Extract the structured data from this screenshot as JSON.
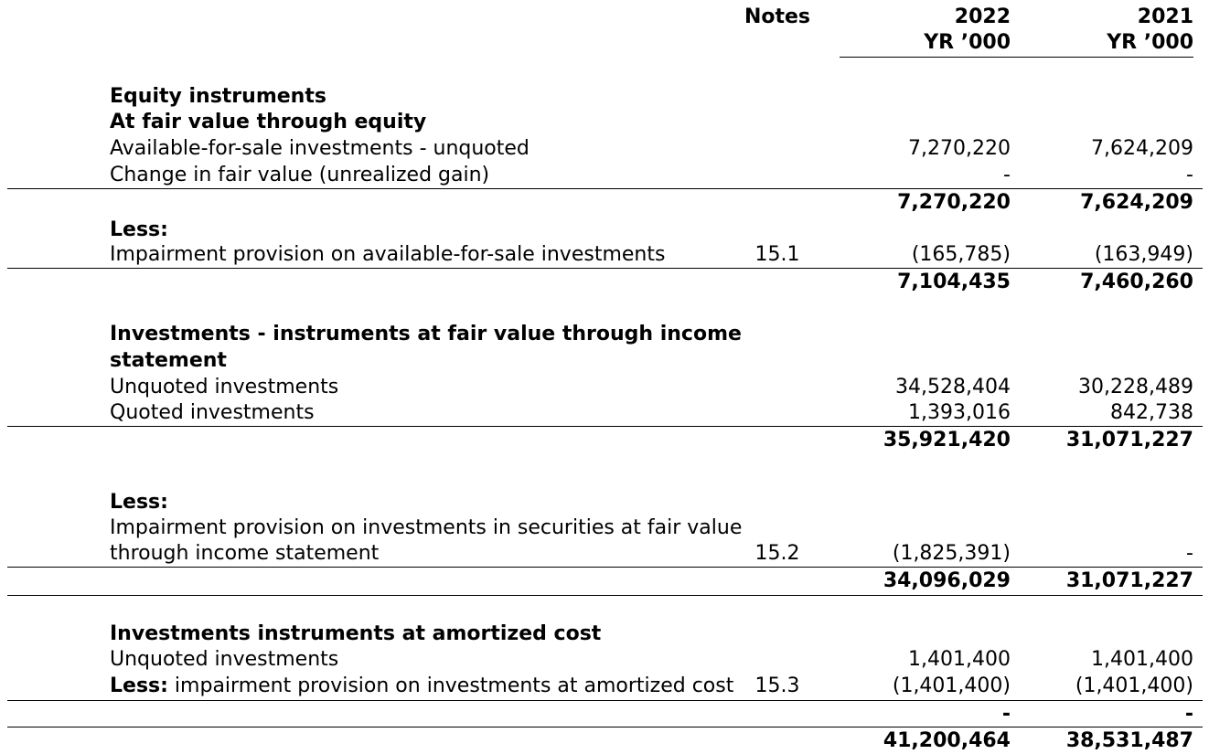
{
  "header": {
    "notes": "Notes",
    "y1": "2022",
    "y1_unit": "YR ’000",
    "y2": "2021",
    "y2_unit": "YR ’000"
  },
  "equity": {
    "title": "Equity instruments",
    "subtitle": "At fair value through equity",
    "afs_label": "Available-for-sale investments - unquoted",
    "afs_2022": "7,270,220",
    "afs_2021": "7,624,209",
    "chg_label": "Change in fair value (unrealized gain)",
    "chg_2022": "-",
    "chg_2021": "-",
    "sub_2022": "7,270,220",
    "sub_2021": "7,624,209",
    "less": "Less:",
    "imp_label": "Impairment provision on available-for-sale investments",
    "imp_note": "15.1",
    "imp_2022": "(165,785)",
    "imp_2021": "(163,949)",
    "net_2022": "7,104,435",
    "net_2021": "7,460,260"
  },
  "fvis": {
    "title_line1": "Investments - instruments at fair value through income",
    "title_line2": "statement",
    "unq_label": "Unquoted investments",
    "unq_2022": "34,528,404",
    "unq_2021": "30,228,489",
    "q_label": "Quoted investments",
    "q_2022": "1,393,016",
    "q_2021": "842,738",
    "sub_2022": "35,921,420",
    "sub_2021": "31,071,227",
    "less": "Less:",
    "imp_line1": "Impairment provision on investments in securities at fair value",
    "imp_line2": "through income statement",
    "imp_note": "15.2",
    "imp_2022": "(1,825,391)",
    "imp_2021": "-",
    "net_2022": "34,096,029",
    "net_2021": "31,071,227"
  },
  "amortized": {
    "title": "Investments instruments at amortized cost",
    "unq_label": "Unquoted investments",
    "unq_2022": "1,401,400",
    "unq_2021": "1,401,400",
    "less_bold": "Less:",
    "imp_label": " impairment provision on investments at amortized cost",
    "imp_note": "15.3",
    "imp_2022": "(1,401,400)",
    "imp_2021": "(1,401,400)",
    "net_2022": "-",
    "net_2021": "-"
  },
  "total": {
    "v2022": "41,200,464",
    "v2021": "38,531,487"
  }
}
